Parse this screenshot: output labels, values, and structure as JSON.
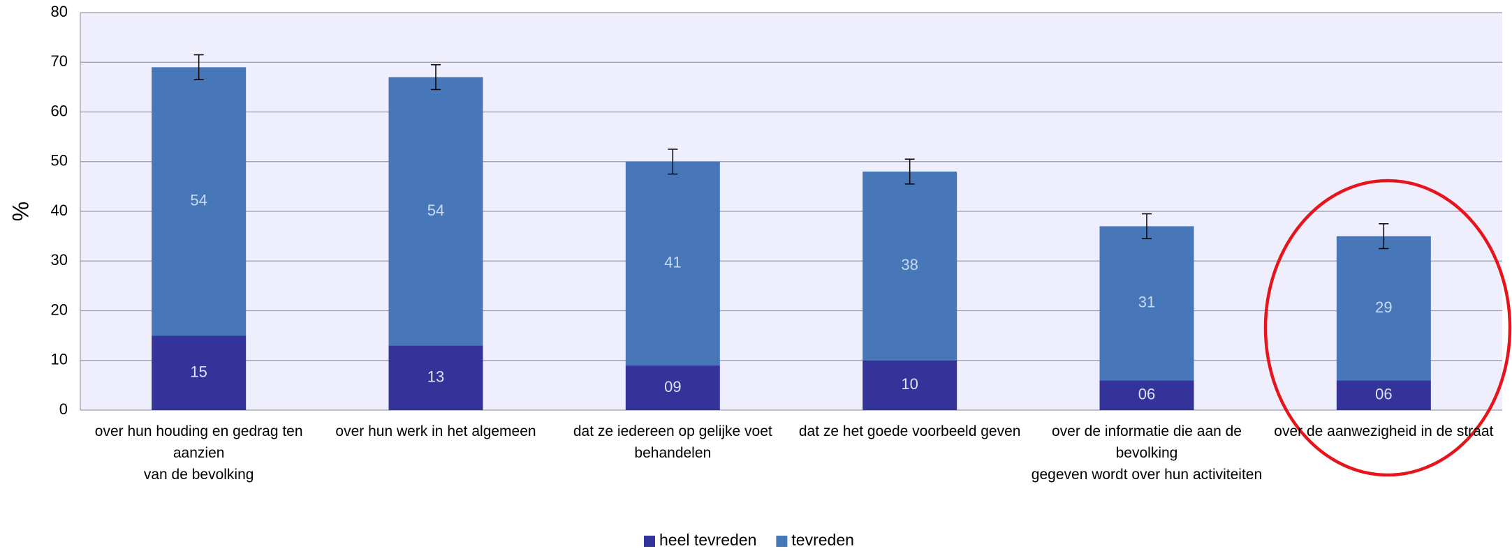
{
  "chart_data": {
    "type": "stacked_bar",
    "ylabel": "%",
    "categories": [
      "over hun houding en gedrag ten aanzien\nvan de bevolking",
      "over hun werk in het algemeen",
      "dat ze iedereen op gelijke voet behandelen",
      "dat ze het goede voorbeeld geven",
      "over de informatie die aan de bevolking\ngegeven wordt over hun activiteiten",
      "over de aanwezigheid in de straat"
    ],
    "series": [
      {
        "name": "heel tevreden",
        "color": "#333399",
        "values": [
          15,
          13,
          9,
          10,
          6,
          6
        ],
        "value_labels": [
          "15",
          "13",
          "09",
          "10",
          "06",
          "06"
        ]
      },
      {
        "name": "tevreden",
        "color": "#4777b8",
        "values": [
          54,
          54,
          41,
          38,
          31,
          29
        ],
        "errors": [
          2.5,
          2.5,
          2.5,
          2.5,
          2.5,
          2.5
        ]
      }
    ],
    "ylim": [
      0,
      80
    ],
    "yticks": [
      0,
      10,
      20,
      30,
      40,
      50,
      60,
      70,
      80
    ],
    "grid": true,
    "legend": "bottom"
  }
}
